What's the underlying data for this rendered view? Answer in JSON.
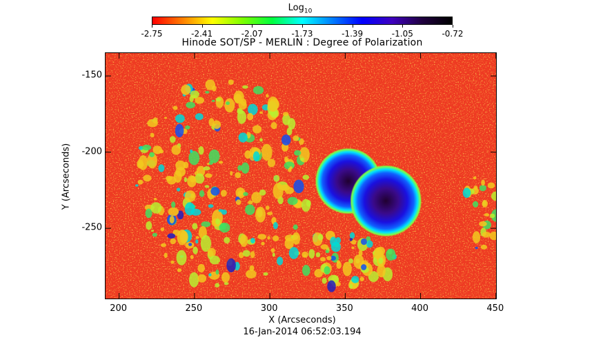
{
  "colorbar": {
    "title": "Log",
    "title_sub": "10",
    "ticks": [
      "-2.75",
      "-2.41",
      "-2.07",
      "-1.73",
      "-1.39",
      "-1.05",
      "-0.72"
    ],
    "range": [
      -2.75,
      -0.72
    ],
    "colors": [
      "#ff0000",
      "#ff7f00",
      "#ffff00",
      "#7fff00",
      "#00ff3f",
      "#00ffff",
      "#007fff",
      "#0000ff",
      "#3f00bf",
      "#200040",
      "#000000"
    ]
  },
  "plot": {
    "title": "Hinode SOT/SP - MERLIN : Degree of Polarization",
    "x_label": "X (Arcseconds)",
    "y_label": "Y (Arcseconds)",
    "x_ticks": [
      "200",
      "250",
      "300",
      "350",
      "400",
      "450"
    ],
    "y_ticks": [
      "-150",
      "-200",
      "-250"
    ],
    "x_range": [
      191,
      451
    ],
    "y_range": [
      -297,
      -135
    ],
    "timestamp": "16-Jan-2014 06:52:03.194"
  },
  "image_features": {
    "sunspots": [
      {
        "x": 352,
        "y": -219,
        "label": ""
      },
      {
        "x": 377,
        "y": -232,
        "label": ""
      }
    ]
  }
}
